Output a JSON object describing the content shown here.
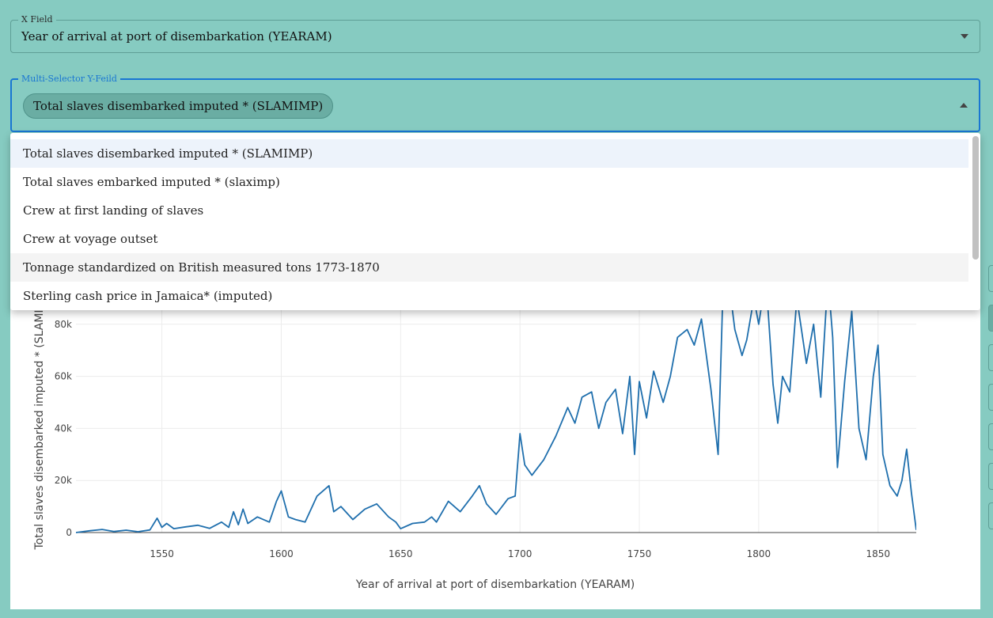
{
  "x_field": {
    "label": "X Field",
    "value": "Year of arrival at port of disembarkation (YEARAM)"
  },
  "y_field": {
    "label": "Multi-Selector Y-Feild",
    "chip": "Total slaves disembarked imputed * (SLAMIMP)"
  },
  "dropdown": {
    "options": [
      "Total slaves disembarked imputed * (SLAMIMP)",
      "Total slaves embarked imputed * (slaximp)",
      "Crew at first landing of slaves",
      "Crew at voyage outset",
      "Tonnage standardized on British measured tons 1773-1870",
      "Sterling cash price in Jamaica* (imputed)"
    ],
    "selected_index": 0,
    "hover_index": 4
  },
  "chart_data": {
    "type": "line",
    "xlabel": "Year of arrival at port of disembarkation (YEARAM)",
    "ylabel": "Total slaves disembarked imputed * (SLAMIMP)",
    "xlim": [
      1514,
      1866
    ],
    "ylim": [
      0,
      100000
    ],
    "x_ticks": [
      1550,
      1600,
      1650,
      1700,
      1750,
      1800,
      1850
    ],
    "y_ticks": [
      0,
      20000,
      40000,
      60000,
      80000
    ],
    "y_tick_labels": [
      "0",
      "20k",
      "40k",
      "60k",
      "80k"
    ],
    "grid": true,
    "line_color": "#1f6fad",
    "series": [
      {
        "x": [
          1514,
          1520,
          1525,
          1530,
          1535,
          1540,
          1545,
          1548,
          1550,
          1552,
          1555,
          1560,
          1565,
          1570,
          1575,
          1578,
          1580,
          1582,
          1584,
          1586,
          1590,
          1595,
          1598,
          1600,
          1603,
          1606,
          1610,
          1615,
          1620,
          1622,
          1625,
          1630,
          1635,
          1640,
          1645,
          1648,
          1650,
          1655,
          1660,
          1663,
          1665,
          1670,
          1675,
          1680,
          1683,
          1686,
          1690,
          1695,
          1698,
          1700,
          1702,
          1705,
          1710,
          1715,
          1720,
          1723,
          1726,
          1730,
          1733,
          1736,
          1740,
          1743,
          1746,
          1748,
          1750,
          1753,
          1756,
          1760,
          1763,
          1766,
          1770,
          1773,
          1776,
          1780,
          1783,
          1785,
          1787,
          1790,
          1793,
          1795,
          1798,
          1800,
          1803,
          1806,
          1808,
          1810,
          1813,
          1816,
          1820,
          1823,
          1826,
          1829,
          1831,
          1833,
          1836,
          1839,
          1842,
          1845,
          1848,
          1850,
          1852,
          1855,
          1858,
          1860,
          1862,
          1864,
          1866
        ],
        "y": [
          0,
          700,
          1200,
          400,
          900,
          300,
          1000,
          5500,
          2000,
          3500,
          1500,
          2200,
          2800,
          1600,
          4000,
          2000,
          8000,
          3000,
          9000,
          3500,
          6000,
          4000,
          12000,
          16000,
          6000,
          5000,
          4000,
          14000,
          18000,
          8000,
          10000,
          5000,
          9000,
          11000,
          6000,
          4000,
          1500,
          3500,
          4000,
          6000,
          4000,
          12000,
          8000,
          14000,
          18000,
          11000,
          7000,
          13000,
          14000,
          38000,
          26000,
          22000,
          28000,
          37000,
          48000,
          42000,
          52000,
          54000,
          40000,
          50000,
          55000,
          38000,
          60000,
          30000,
          58000,
          44000,
          62000,
          50000,
          60000,
          75000,
          78000,
          72000,
          82000,
          55000,
          30000,
          92000,
          100000,
          78000,
          68000,
          74000,
          90000,
          80000,
          98000,
          57000,
          42000,
          60000,
          54000,
          90000,
          65000,
          80000,
          52000,
          98000,
          75000,
          25000,
          58000,
          85000,
          40000,
          28000,
          60000,
          72000,
          30000,
          18000,
          14000,
          20000,
          32000,
          15000,
          1000
        ]
      }
    ]
  }
}
